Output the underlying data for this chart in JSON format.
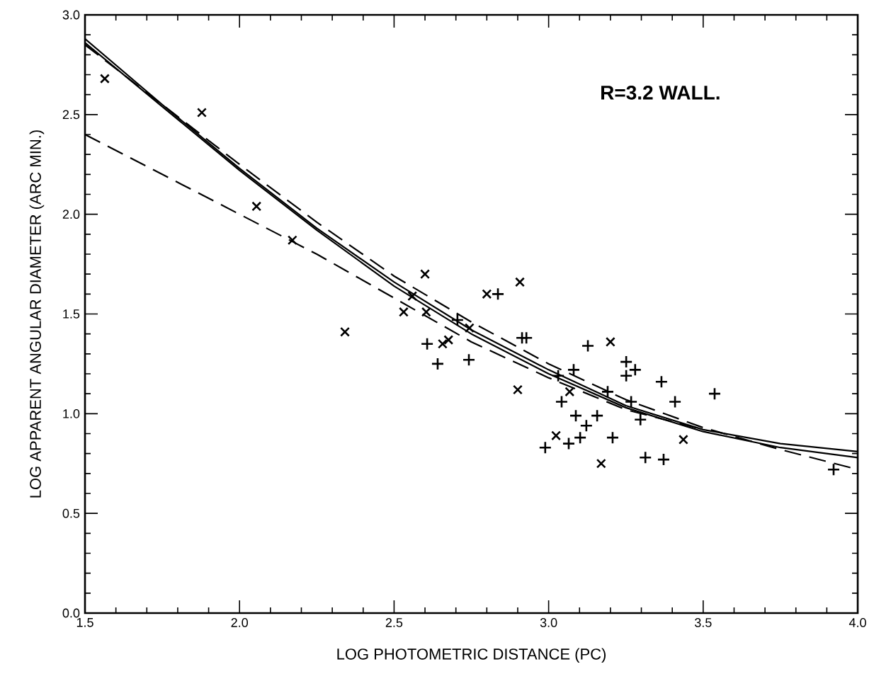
{
  "chart_data": {
    "type": "scatter",
    "xlabel": "LOG   PHOTOMETRIC  DISTANCE    (PC)",
    "ylabel": "LOG  APPARENT  ANGULAR  DIAMETER  (ARC MIN.)",
    "annotations": [
      "R=3.2 WALL."
    ],
    "xlim": [
      1.5,
      4.0
    ],
    "ylim": [
      0.0,
      3.0
    ],
    "xticks": [
      {
        "value": 1.5,
        "label": "1.5"
      },
      {
        "value": 2.0,
        "label": "2.0"
      },
      {
        "value": 2.5,
        "label": "2.5"
      },
      {
        "value": 3.0,
        "label": "3.0"
      },
      {
        "value": 3.5,
        "label": "3.5"
      },
      {
        "value": 4.0,
        "label": "4.0"
      }
    ],
    "yticks": [
      {
        "value": 0.0,
        "label": "0.0"
      },
      {
        "value": 0.5,
        "label": "0.5"
      },
      {
        "value": 1.0,
        "label": "1.0"
      },
      {
        "value": 1.5,
        "label": "1.5"
      },
      {
        "value": 2.0,
        "label": "2.0"
      },
      {
        "value": 2.5,
        "label": "2.5"
      },
      {
        "value": 3.0,
        "label": "3.0"
      }
    ],
    "series": [
      {
        "marker": "cross",
        "color": "#000000",
        "x": [
          1.564,
          1.878,
          2.055,
          2.171,
          2.341,
          2.531,
          2.559,
          2.6,
          2.604,
          2.657,
          2.676,
          2.744,
          2.8,
          2.907,
          2.9,
          3.068,
          3.2,
          3.024,
          3.17,
          3.436
        ],
        "values": [
          2.68,
          2.51,
          2.04,
          1.87,
          1.41,
          1.51,
          1.59,
          1.7,
          1.51,
          1.35,
          1.37,
          1.43,
          1.6,
          1.66,
          1.12,
          1.11,
          1.36,
          0.89,
          0.75,
          0.87
        ]
      },
      {
        "marker": "plus",
        "color": "#000000",
        "x": [
          2.836,
          2.705,
          2.607,
          2.641,
          2.742,
          2.914,
          2.928,
          3.127,
          3.081,
          3.031,
          3.042,
          3.088,
          3.157,
          3.122,
          3.102,
          3.065,
          2.989,
          3.207,
          3.191,
          3.251,
          3.251,
          3.28,
          3.267,
          3.297,
          3.365,
          3.409,
          3.537,
          3.313,
          3.372,
          3.922
        ],
        "values": [
          1.6,
          1.47,
          1.35,
          1.25,
          1.27,
          1.38,
          1.38,
          1.34,
          1.22,
          1.19,
          1.06,
          0.99,
          0.99,
          0.94,
          0.88,
          0.85,
          0.83,
          0.88,
          1.11,
          1.26,
          1.19,
          1.22,
          1.06,
          0.97,
          1.16,
          1.06,
          1.1,
          0.78,
          0.77,
          0.72
        ]
      },
      {
        "type": "line",
        "line_style": "solid",
        "marker": "none",
        "color": "#000000",
        "x": [
          1.5,
          1.75,
          2.0,
          2.25,
          2.5,
          2.75,
          3.0,
          3.25,
          3.5,
          3.75,
          4.0
        ],
        "values": [
          2.88,
          2.55,
          2.23,
          1.93,
          1.66,
          1.42,
          1.22,
          1.04,
          0.92,
          0.85,
          0.81
        ]
      },
      {
        "type": "line",
        "line_style": "solid",
        "marker": "none",
        "color": "#000000",
        "x": [
          1.5,
          1.75,
          2.0,
          2.25,
          2.5,
          2.75,
          3.0,
          3.25,
          3.5,
          3.75,
          4.0
        ],
        "values": [
          2.86,
          2.54,
          2.22,
          1.92,
          1.64,
          1.4,
          1.2,
          1.03,
          0.91,
          0.83,
          0.78
        ]
      },
      {
        "type": "line",
        "line_style": "dashed",
        "marker": "none",
        "color": "#000000",
        "x": [
          1.5,
          1.75,
          2.0,
          2.25,
          2.5,
          2.75,
          3.0,
          3.25,
          3.5,
          3.75,
          4.0
        ],
        "values": [
          2.85,
          2.55,
          2.25,
          1.96,
          1.69,
          1.46,
          1.25,
          1.07,
          0.93,
          0.82,
          0.72
        ]
      },
      {
        "type": "line",
        "line_style": "dashed",
        "marker": "none",
        "color": "#000000",
        "x": [
          1.5,
          1.75,
          2.0,
          2.25,
          2.5,
          2.75,
          3.0,
          3.25,
          3.5
        ],
        "values": [
          2.4,
          2.2,
          2.0,
          1.8,
          1.58,
          1.36,
          1.18,
          1.02,
          0.92
        ]
      }
    ]
  }
}
